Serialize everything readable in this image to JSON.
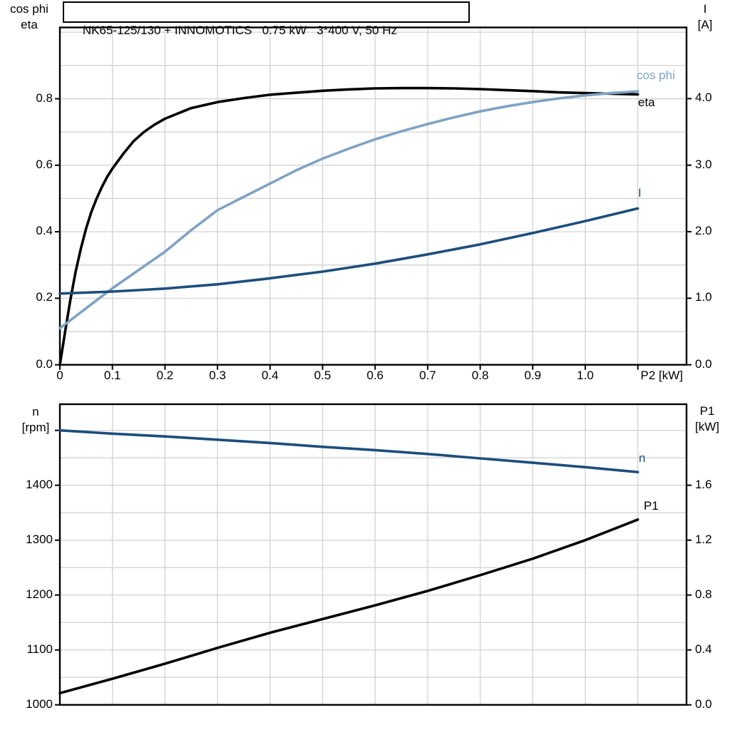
{
  "title_box": {
    "text": "NK65-125/130 + INNOMOTICS   0.75 kW   3*400 V, 50 Hz"
  },
  "colors": {
    "background": "#ffffff",
    "axis": "#000000",
    "grid": "#d5d5d5",
    "curve_black": "#000000",
    "curve_light_blue": "#7fa2c3",
    "curve_dark_blue": "#1c4e7c"
  },
  "top_chart": {
    "left_axis": {
      "title_lines": [
        "cos phi",
        "eta"
      ],
      "tick_values": [
        0.8,
        0.6,
        0.4,
        0.2,
        0.0
      ],
      "tick_labels": [
        "0.8",
        "0.6",
        "0.4",
        "0.2",
        "0.0"
      ],
      "gridline_values": [
        0.1,
        0.2,
        0.3,
        0.4,
        0.5,
        0.6,
        0.7,
        0.8,
        0.9,
        1.0
      ]
    },
    "right_axis": {
      "title_lines": [
        "I",
        "[A]"
      ],
      "tick_values": [
        4.0,
        3.0,
        2.0,
        1.0,
        0.0
      ],
      "tick_labels": [
        "4.0",
        "3.0",
        "2.0",
        "1.0",
        "0.0"
      ]
    },
    "x_axis": {
      "title": "P2 [kW]",
      "tick_values": [
        0,
        0.1,
        0.2,
        0.3,
        0.4,
        0.5,
        0.6,
        0.7,
        0.8,
        0.9,
        1.0,
        1.1
      ],
      "tick_labels": [
        "0",
        "0.1",
        "0.2",
        "0.3",
        "0.4",
        "0.5",
        "0.6",
        "0.7",
        "0.8",
        "0.9",
        "1.0",
        ""
      ]
    },
    "curve_labels": {
      "cos_phi": "cos phi",
      "eta": "eta",
      "current": "I"
    }
  },
  "bottom_chart": {
    "left_axis": {
      "title_lines": [
        "n",
        "[rpm]"
      ],
      "tick_values": [
        1500,
        1400,
        1300,
        1200,
        1100,
        1000
      ],
      "tick_labels": [
        "",
        "1400",
        "1300",
        "1200",
        "1100",
        "1000"
      ],
      "gridline_values": [
        1050,
        1100,
        1150,
        1200,
        1250,
        1300,
        1350,
        1400,
        1450,
        1500
      ]
    },
    "right_axis": {
      "title_lines": [
        "P1",
        "[kW]"
      ],
      "tick_values": [
        1.6,
        1.2,
        0.8,
        0.4,
        0.0
      ],
      "tick_labels": [
        "1.6",
        "1.2",
        "0.8",
        "0.4",
        "0.0"
      ]
    },
    "x_axis": {
      "title": "",
      "tick_values": [],
      "tick_labels": [],
      "gridline_values": [
        0.1,
        0.2,
        0.3,
        0.4,
        0.5,
        0.6,
        0.7,
        0.8,
        0.9,
        1.0,
        1.1
      ]
    },
    "curve_labels": {
      "n": "n",
      "p1": "P1"
    }
  },
  "chart_data": [
    {
      "type": "line",
      "title": "NK65-125/130 + INNOMOTICS 0.75 kW 3*400 V, 50 Hz",
      "xlabel": "P2 [kW]",
      "x_range": [
        0,
        1.19
      ],
      "left_axis": {
        "label": "cos phi / eta",
        "range": [
          0,
          1.015
        ],
        "ticks": [
          0,
          0.2,
          0.4,
          0.6,
          0.8
        ],
        "gridline_step": 0.1
      },
      "right_axis": {
        "label": "I [A]",
        "range": [
          0,
          5.07
        ],
        "ticks": [
          0,
          1,
          2,
          3,
          4
        ],
        "gridline_step": 0.5
      },
      "grid": true,
      "legend_position": "curve-end-labels",
      "series": [
        {
          "name": "eta",
          "axis": "left",
          "color": "#000000",
          "x": [
            0,
            0.01,
            0.02,
            0.03,
            0.04,
            0.05,
            0.06,
            0.07,
            0.08,
            0.09,
            0.1,
            0.12,
            0.14,
            0.16,
            0.18,
            0.2,
            0.25,
            0.3,
            0.35,
            0.4,
            0.45,
            0.5,
            0.55,
            0.6,
            0.65,
            0.7,
            0.75,
            0.8,
            0.85,
            0.9,
            0.95,
            1.0,
            1.05,
            1.1
          ],
          "y": [
            0,
            0.1,
            0.195,
            0.28,
            0.35,
            0.41,
            0.46,
            0.5,
            0.535,
            0.565,
            0.59,
            0.633,
            0.672,
            0.7,
            0.722,
            0.74,
            0.772,
            0.79,
            0.802,
            0.812,
            0.818,
            0.824,
            0.828,
            0.831,
            0.832,
            0.832,
            0.831,
            0.829,
            0.826,
            0.823,
            0.819,
            0.817,
            0.815,
            0.813
          ]
        },
        {
          "name": "cos phi",
          "axis": "left",
          "color": "#7fa2c3",
          "x": [
            0,
            0.05,
            0.1,
            0.15,
            0.2,
            0.25,
            0.3,
            0.35,
            0.4,
            0.45,
            0.5,
            0.55,
            0.6,
            0.65,
            0.7,
            0.75,
            0.8,
            0.85,
            0.9,
            0.95,
            1.0,
            1.05,
            1.1
          ],
          "y": [
            0.11,
            0.17,
            0.23,
            0.285,
            0.34,
            0.405,
            0.465,
            0.505,
            0.545,
            0.585,
            0.62,
            0.65,
            0.678,
            0.702,
            0.724,
            0.744,
            0.762,
            0.777,
            0.79,
            0.801,
            0.81,
            0.817,
            0.822
          ]
        },
        {
          "name": "I",
          "axis": "right",
          "color": "#1c4e7c",
          "x": [
            0,
            0.1,
            0.2,
            0.3,
            0.4,
            0.5,
            0.6,
            0.7,
            0.8,
            0.9,
            1.0,
            1.1
          ],
          "y": [
            1.07,
            1.1,
            1.145,
            1.21,
            1.3,
            1.4,
            1.52,
            1.66,
            1.81,
            1.98,
            2.16,
            2.35
          ]
        }
      ]
    },
    {
      "type": "line",
      "title": "",
      "xlabel": "",
      "x_range": [
        0,
        1.19
      ],
      "left_axis": {
        "label": "n [rpm]",
        "range": [
          1000,
          1548
        ],
        "ticks": [
          1000,
          1100,
          1200,
          1300,
          1400,
          1500
        ],
        "gridline_step": 50
      },
      "right_axis": {
        "label": "P1 [kW]",
        "range": [
          0,
          2.19
        ],
        "ticks": [
          0,
          0.4,
          0.8,
          1.2,
          1.6
        ],
        "gridline_step": 0.2
      },
      "grid": true,
      "legend_position": "curve-end-labels",
      "series": [
        {
          "name": "n",
          "axis": "left",
          "color": "#1c4e7c",
          "x": [
            0,
            0.1,
            0.2,
            0.3,
            0.4,
            0.5,
            0.6,
            0.7,
            0.8,
            0.9,
            1.0,
            1.1
          ],
          "y": [
            1500,
            1494,
            1489,
            1483,
            1477,
            1470,
            1464,
            1457,
            1449,
            1441,
            1433,
            1424
          ]
        },
        {
          "name": "P1",
          "axis": "right",
          "color": "#000000",
          "x": [
            0,
            0.1,
            0.2,
            0.3,
            0.4,
            0.5,
            0.6,
            0.7,
            0.8,
            0.9,
            1.0,
            1.1
          ],
          "y": [
            0.085,
            0.19,
            0.3,
            0.415,
            0.525,
            0.625,
            0.725,
            0.83,
            0.945,
            1.065,
            1.2,
            1.35
          ]
        }
      ]
    }
  ]
}
